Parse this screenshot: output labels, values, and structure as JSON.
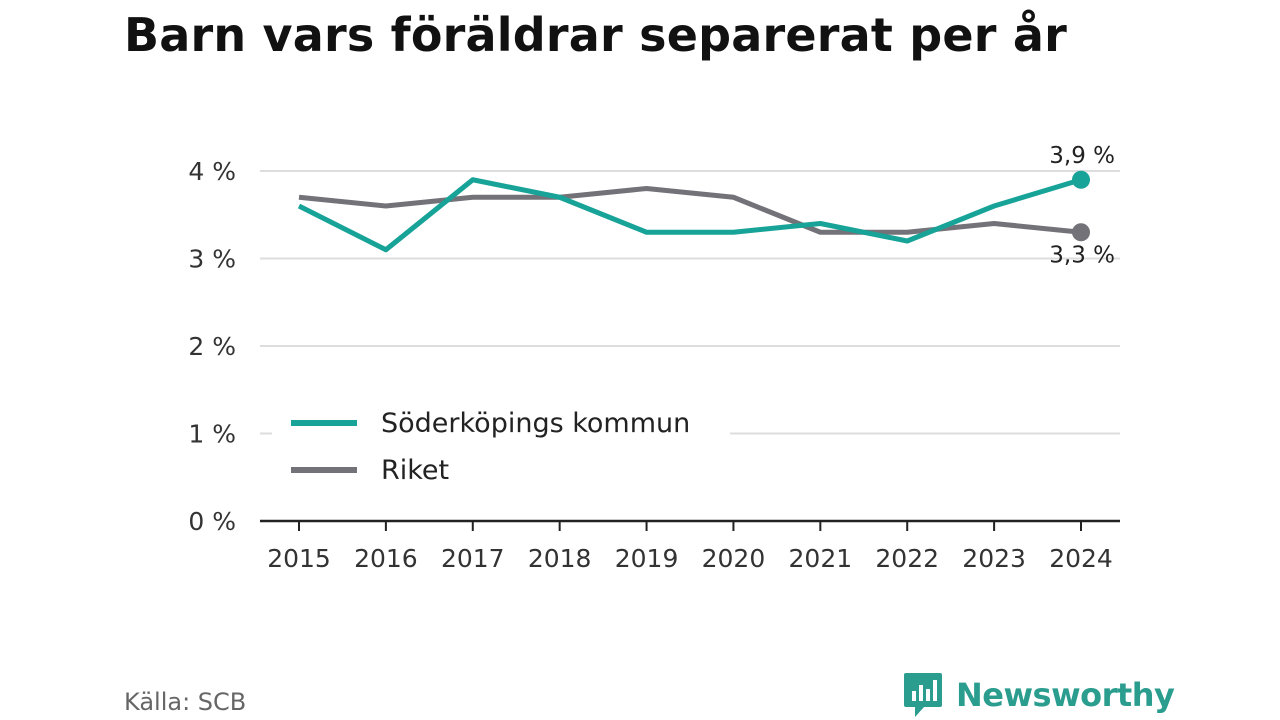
{
  "title": "Barn vars föräldrar separerat per år",
  "source": "Källa: SCB",
  "brand": {
    "name": "Newsworthy",
    "icon": "newsworthy-chat-bars-icon",
    "color": "#2a9d8f"
  },
  "chart_data": {
    "type": "line",
    "x": [
      "2015",
      "2016",
      "2017",
      "2018",
      "2019",
      "2020",
      "2021",
      "2022",
      "2023",
      "2024"
    ],
    "ylim": [
      0,
      4
    ],
    "yticks": [
      0,
      1,
      2,
      3,
      4
    ],
    "ytick_labels": [
      "0 %",
      "1 %",
      "2 %",
      "3 %",
      "4 %"
    ],
    "grid": true,
    "legend_position": "bottom-left",
    "series": [
      {
        "name": "Söderköpings kommun",
        "color": "#17a398",
        "values": [
          3.6,
          3.1,
          3.9,
          3.7,
          3.3,
          3.3,
          3.4,
          3.2,
          3.6,
          3.9
        ],
        "end_label": "3,9 %"
      },
      {
        "name": "Riket",
        "color": "#737278",
        "values": [
          3.7,
          3.6,
          3.7,
          3.7,
          3.8,
          3.7,
          3.3,
          3.3,
          3.4,
          3.3
        ],
        "end_label": "3,3 %"
      }
    ]
  }
}
